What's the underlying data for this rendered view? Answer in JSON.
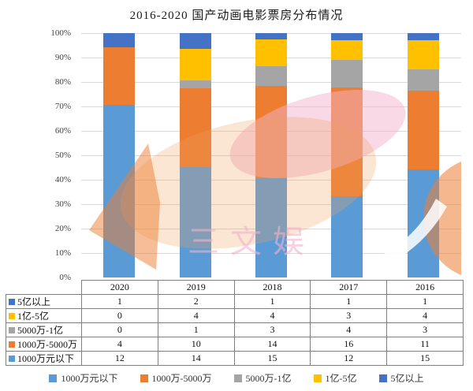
{
  "title": "2016-2020 国产动画电影票房分布情况",
  "watermark": {
    "text": "三文娱"
  },
  "chart_data": {
    "type": "bar",
    "variant": "stacked-100-percent",
    "title": "2016-2020 国产动画电影票房分布情况",
    "categories": [
      "2020",
      "2019",
      "2018",
      "2017",
      "2016"
    ],
    "series": [
      {
        "name": "1000万元以下",
        "color": "#5B9BD5",
        "values": [
          12,
          14,
          15,
          12,
          15
        ]
      },
      {
        "name": "1000万-5000万",
        "color": "#ED7D31",
        "values": [
          4,
          10,
          14,
          16,
          11
        ]
      },
      {
        "name": "5000万-1亿",
        "color": "#A5A5A5",
        "values": [
          0,
          1,
          3,
          4,
          3
        ]
      },
      {
        "name": "1亿-5亿",
        "color": "#FFC000",
        "values": [
          0,
          4,
          4,
          3,
          4
        ]
      },
      {
        "name": "5亿以上",
        "color": "#4472C4",
        "values": [
          1,
          2,
          1,
          1,
          1
        ]
      }
    ],
    "yticks": [
      "100%",
      "90%",
      "80%",
      "70%",
      "60%",
      "50%",
      "40%",
      "30%",
      "20%",
      "10%",
      "0%"
    ],
    "ylim": [
      0,
      100
    ],
    "grid": true,
    "gridline_color": "#D9D9D9",
    "legend_position": "bottom",
    "table_row_order_top_to_bottom": [
      "5亿以上",
      "1亿-5亿",
      "5000万-1亿",
      "1000万-5000万",
      "1000万元以下"
    ]
  }
}
